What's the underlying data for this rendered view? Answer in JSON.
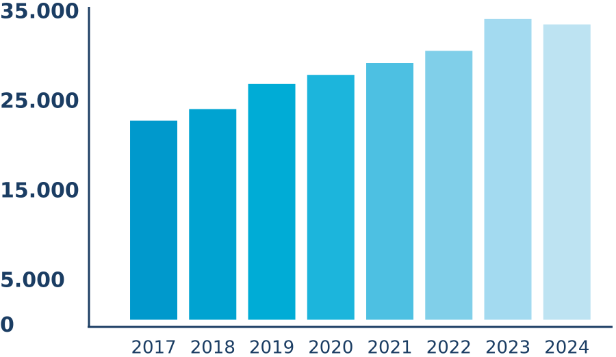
{
  "chart_data": {
    "type": "bar",
    "categories": [
      "2017",
      "2018",
      "2019",
      "2020",
      "2021",
      "2022",
      "2023",
      "2024"
    ],
    "values": [
      22900,
      24200,
      27000,
      28000,
      29350,
      30700,
      34250,
      33650
    ],
    "colors": [
      "#0099cc",
      "#00a3d1",
      "#00acd6",
      "#1cb5dc",
      "#4dc0e2",
      "#80cfe9",
      "#a3daf0",
      "#bde3f2"
    ],
    "ylim": [
      0,
      35000
    ],
    "yticks": [
      0,
      {
        "value": 5000,
        "label": "5.000"
      },
      {
        "value": 15000,
        "label": "15.000"
      },
      {
        "value": 25000,
        "label": "25.000"
      },
      {
        "value": 35000,
        "label": "35.000"
      }
    ],
    "grid": false
  }
}
